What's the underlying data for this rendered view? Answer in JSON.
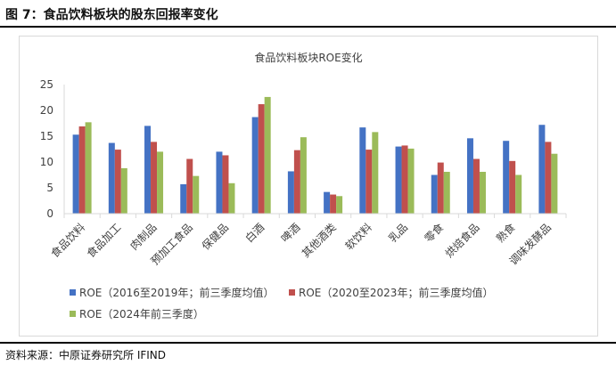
{
  "figure": {
    "caption": "图 7：食品饮料板块的股东回报率变化",
    "source": "资料来源：中原证券研究所  IFIND"
  },
  "chart_data": {
    "type": "bar",
    "title": "食品饮料板块ROE变化",
    "categories": [
      "食品饮料",
      "食品加工",
      "肉制品",
      "预加工食品",
      "保健品",
      "白酒",
      "啤酒",
      "其他酒类",
      "软饮料",
      "乳品",
      "零食",
      "烘焙食品",
      "熟食",
      "调味发酵品"
    ],
    "series": [
      {
        "name": "ROE（2016至2019年；前三季度均值）",
        "color": "#4472C4",
        "values": [
          15.3,
          13.7,
          17.0,
          5.7,
          12.0,
          18.7,
          8.2,
          4.2,
          16.7,
          13.0,
          7.5,
          14.6,
          14.1,
          17.2
        ]
      },
      {
        "name": "ROE（2020至2023年；前三季度均值）",
        "color": "#C0504D",
        "values": [
          16.9,
          12.4,
          13.9,
          10.6,
          11.3,
          21.2,
          12.3,
          3.7,
          12.4,
          13.2,
          9.9,
          10.6,
          10.2,
          13.9
        ]
      },
      {
        "name": "ROE（2024年前三季度）",
        "color": "#9BBB59",
        "values": [
          17.7,
          8.8,
          12.0,
          7.3,
          5.9,
          22.6,
          14.8,
          3.4,
          15.8,
          12.6,
          8.1,
          8.1,
          7.5,
          11.6
        ]
      }
    ],
    "ylim": [
      0,
      25
    ],
    "yticks": [
      0,
      5,
      10,
      15,
      20,
      25
    ],
    "grid": false,
    "legend": "bottom"
  }
}
